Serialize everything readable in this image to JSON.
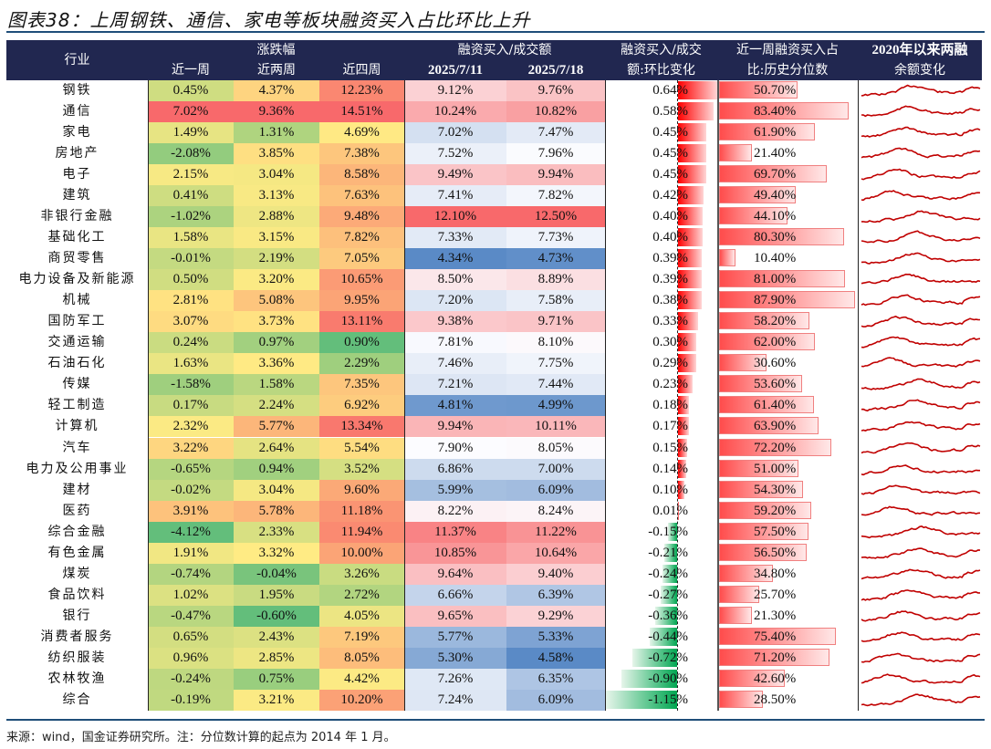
{
  "title": "图表38：上周钢铁、通信、家电等板块融资买入占比环比上升",
  "footer": "来源：wind，国金证券研究所。注：分位数计算的起点为 2014 年 1 月。",
  "header": {
    "industry": "行业",
    "return_group": "涨跌幅",
    "return_cols": [
      "近一周",
      "近两周",
      "近四周"
    ],
    "ratio_group": "融资买入/成交额",
    "ratio_cols": [
      "2025/7/11",
      "2025/7/18"
    ],
    "change_line1": "融资买入/成交",
    "change_line2": "额:环比变化",
    "pct_line1": "近一周融资买入占",
    "pct_line2": "比:历史分位数",
    "spark_line1": "2020年以来两融",
    "spark_line2": "余额变化"
  },
  "colors": {
    "header_bg": "#212750",
    "rule": "#1f4e79",
    "pos_bar": "#ff0000",
    "neg_bar": "#00a651",
    "spark_line": "#c00000"
  },
  "rows": [
    {
      "industry": "钢铁",
      "w1": "0.45%",
      "w2": "4.37%",
      "w4": "12.23%",
      "r1": "9.12%",
      "r2": "9.76%",
      "chg": "0.64%",
      "chg_v": 0.64,
      "pct": "50.70%",
      "pct_v": 50.7
    },
    {
      "industry": "通信",
      "w1": "7.02%",
      "w2": "9.36%",
      "w4": "14.51%",
      "r1": "10.24%",
      "r2": "10.82%",
      "chg": "0.58%",
      "chg_v": 0.58,
      "pct": "83.40%",
      "pct_v": 83.4
    },
    {
      "industry": "家电",
      "w1": "1.49%",
      "w2": "1.31%",
      "w4": "4.69%",
      "r1": "7.02%",
      "r2": "7.47%",
      "chg": "0.45%",
      "chg_v": 0.45,
      "pct": "61.90%",
      "pct_v": 61.9
    },
    {
      "industry": "房地产",
      "w1": "-2.08%",
      "w2": "3.85%",
      "w4": "7.38%",
      "r1": "7.52%",
      "r2": "7.96%",
      "chg": "0.45%",
      "chg_v": 0.45,
      "pct": "21.40%",
      "pct_v": 21.4
    },
    {
      "industry": "电子",
      "w1": "2.15%",
      "w2": "3.04%",
      "w4": "8.58%",
      "r1": "9.49%",
      "r2": "9.94%",
      "chg": "0.45%",
      "chg_v": 0.45,
      "pct": "69.70%",
      "pct_v": 69.7
    },
    {
      "industry": "建筑",
      "w1": "0.41%",
      "w2": "3.13%",
      "w4": "7.63%",
      "r1": "7.41%",
      "r2": "7.82%",
      "chg": "0.42%",
      "chg_v": 0.42,
      "pct": "49.40%",
      "pct_v": 49.4
    },
    {
      "industry": "非银行金融",
      "w1": "-1.02%",
      "w2": "2.88%",
      "w4": "9.48%",
      "r1": "12.10%",
      "r2": "12.50%",
      "chg": "0.40%",
      "chg_v": 0.4,
      "pct": "44.10%",
      "pct_v": 44.1
    },
    {
      "industry": "基础化工",
      "w1": "1.58%",
      "w2": "3.15%",
      "w4": "7.82%",
      "r1": "7.33%",
      "r2": "7.73%",
      "chg": "0.40%",
      "chg_v": 0.4,
      "pct": "80.30%",
      "pct_v": 80.3
    },
    {
      "industry": "商贸零售",
      "w1": "-0.01%",
      "w2": "2.19%",
      "w4": "7.05%",
      "r1": "4.34%",
      "r2": "4.73%",
      "chg": "0.39%",
      "chg_v": 0.39,
      "pct": "10.40%",
      "pct_v": 10.4
    },
    {
      "industry": "电力设备及新能源",
      "w1": "0.50%",
      "w2": "3.20%",
      "w4": "10.65%",
      "r1": "8.50%",
      "r2": "8.89%",
      "chg": "0.39%",
      "chg_v": 0.39,
      "pct": "81.00%",
      "pct_v": 81.0
    },
    {
      "industry": "机械",
      "w1": "2.81%",
      "w2": "5.08%",
      "w4": "9.95%",
      "r1": "7.20%",
      "r2": "7.58%",
      "chg": "0.38%",
      "chg_v": 0.38,
      "pct": "87.90%",
      "pct_v": 87.9
    },
    {
      "industry": "国防军工",
      "w1": "3.07%",
      "w2": "3.73%",
      "w4": "13.11%",
      "r1": "9.38%",
      "r2": "9.71%",
      "chg": "0.33%",
      "chg_v": 0.33,
      "pct": "58.20%",
      "pct_v": 58.2
    },
    {
      "industry": "交通运输",
      "w1": "0.24%",
      "w2": "0.97%",
      "w4": "0.90%",
      "r1": "7.81%",
      "r2": "8.10%",
      "chg": "0.30%",
      "chg_v": 0.3,
      "pct": "62.00%",
      "pct_v": 62.0
    },
    {
      "industry": "石油石化",
      "w1": "1.63%",
      "w2": "3.36%",
      "w4": "2.29%",
      "r1": "7.46%",
      "r2": "7.75%",
      "chg": "0.29%",
      "chg_v": 0.29,
      "pct": "30.60%",
      "pct_v": 30.6
    },
    {
      "industry": "传媒",
      "w1": "-1.58%",
      "w2": "1.58%",
      "w4": "7.35%",
      "r1": "7.21%",
      "r2": "7.44%",
      "chg": "0.23%",
      "chg_v": 0.23,
      "pct": "53.60%",
      "pct_v": 53.6
    },
    {
      "industry": "轻工制造",
      "w1": "0.17%",
      "w2": "2.24%",
      "w4": "6.92%",
      "r1": "4.81%",
      "r2": "4.99%",
      "chg": "0.18%",
      "chg_v": 0.18,
      "pct": "61.40%",
      "pct_v": 61.4
    },
    {
      "industry": "计算机",
      "w1": "2.32%",
      "w2": "5.77%",
      "w4": "13.34%",
      "r1": "9.94%",
      "r2": "10.11%",
      "chg": "0.17%",
      "chg_v": 0.17,
      "pct": "63.90%",
      "pct_v": 63.9
    },
    {
      "industry": "汽车",
      "w1": "3.22%",
      "w2": "2.64%",
      "w4": "5.54%",
      "r1": "7.90%",
      "r2": "8.05%",
      "chg": "0.15%",
      "chg_v": 0.15,
      "pct": "72.20%",
      "pct_v": 72.2
    },
    {
      "industry": "电力及公用事业",
      "w1": "-0.65%",
      "w2": "0.94%",
      "w4": "3.52%",
      "r1": "6.86%",
      "r2": "7.00%",
      "chg": "0.14%",
      "chg_v": 0.14,
      "pct": "51.00%",
      "pct_v": 51.0
    },
    {
      "industry": "建材",
      "w1": "-0.02%",
      "w2": "3.04%",
      "w4": "9.60%",
      "r1": "5.99%",
      "r2": "6.09%",
      "chg": "0.10%",
      "chg_v": 0.1,
      "pct": "54.30%",
      "pct_v": 54.3
    },
    {
      "industry": "医药",
      "w1": "3.91%",
      "w2": "5.78%",
      "w4": "11.18%",
      "r1": "8.22%",
      "r2": "8.24%",
      "chg": "0.01%",
      "chg_v": 0.01,
      "pct": "59.20%",
      "pct_v": 59.2
    },
    {
      "industry": "综合金融",
      "w1": "-4.12%",
      "w2": "2.33%",
      "w4": "11.94%",
      "r1": "11.37%",
      "r2": "11.22%",
      "chg": "-0.15%",
      "chg_v": -0.15,
      "pct": "57.50%",
      "pct_v": 57.5
    },
    {
      "industry": "有色金属",
      "w1": "1.91%",
      "w2": "3.32%",
      "w4": "10.00%",
      "r1": "10.85%",
      "r2": "10.64%",
      "chg": "-0.21%",
      "chg_v": -0.21,
      "pct": "56.50%",
      "pct_v": 56.5
    },
    {
      "industry": "煤炭",
      "w1": "-0.74%",
      "w2": "-0.04%",
      "w4": "3.26%",
      "r1": "9.64%",
      "r2": "9.40%",
      "chg": "-0.24%",
      "chg_v": -0.24,
      "pct": "34.80%",
      "pct_v": 34.8
    },
    {
      "industry": "食品饮料",
      "w1": "1.02%",
      "w2": "1.95%",
      "w4": "2.72%",
      "r1": "6.66%",
      "r2": "6.39%",
      "chg": "-0.27%",
      "chg_v": -0.27,
      "pct": "25.70%",
      "pct_v": 25.7
    },
    {
      "industry": "银行",
      "w1": "-0.47%",
      "w2": "-0.60%",
      "w4": "4.05%",
      "r1": "9.65%",
      "r2": "9.29%",
      "chg": "-0.36%",
      "chg_v": -0.36,
      "pct": "21.30%",
      "pct_v": 21.3
    },
    {
      "industry": "消费者服务",
      "w1": "0.65%",
      "w2": "2.43%",
      "w4": "7.19%",
      "r1": "5.77%",
      "r2": "5.33%",
      "chg": "-0.44%",
      "chg_v": -0.44,
      "pct": "75.40%",
      "pct_v": 75.4
    },
    {
      "industry": "纺织服装",
      "w1": "0.96%",
      "w2": "2.85%",
      "w4": "8.05%",
      "r1": "5.30%",
      "r2": "4.58%",
      "chg": "-0.72%",
      "chg_v": -0.72,
      "pct": "71.20%",
      "pct_v": 71.2
    },
    {
      "industry": "农林牧渔",
      "w1": "-0.24%",
      "w2": "0.75%",
      "w4": "4.42%",
      "r1": "7.26%",
      "r2": "6.35%",
      "chg": "-0.90%",
      "chg_v": -0.9,
      "pct": "42.60%",
      "pct_v": 42.6
    },
    {
      "industry": "综合",
      "w1": "-0.19%",
      "w2": "3.21%",
      "w4": "10.20%",
      "r1": "7.24%",
      "r2": "6.09%",
      "chg": "-1.15%",
      "chg_v": -1.15,
      "pct": "28.50%",
      "pct_v": 28.5
    }
  ]
}
